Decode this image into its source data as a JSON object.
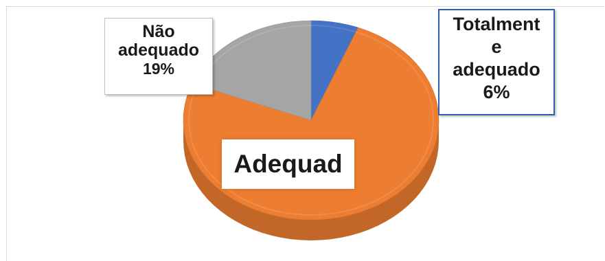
{
  "chart_data": {
    "type": "pie",
    "style": "3d",
    "slices": [
      {
        "name": "Totalmente adequado",
        "value": 6,
        "color": "#4472c4",
        "label_lines": [
          "Totalment",
          "e",
          "adequado"
        ],
        "pct_text": "6%"
      },
      {
        "name": "Adequado",
        "value": 75,
        "color": "#ed7d31",
        "label_lines": [
          "Adequad"
        ],
        "pct_text": ""
      },
      {
        "name": "Não adequado",
        "value": 19,
        "color": "#a5a5a5",
        "label_lines": [
          "Não",
          "adequado"
        ],
        "pct_text": "19%"
      }
    ]
  }
}
